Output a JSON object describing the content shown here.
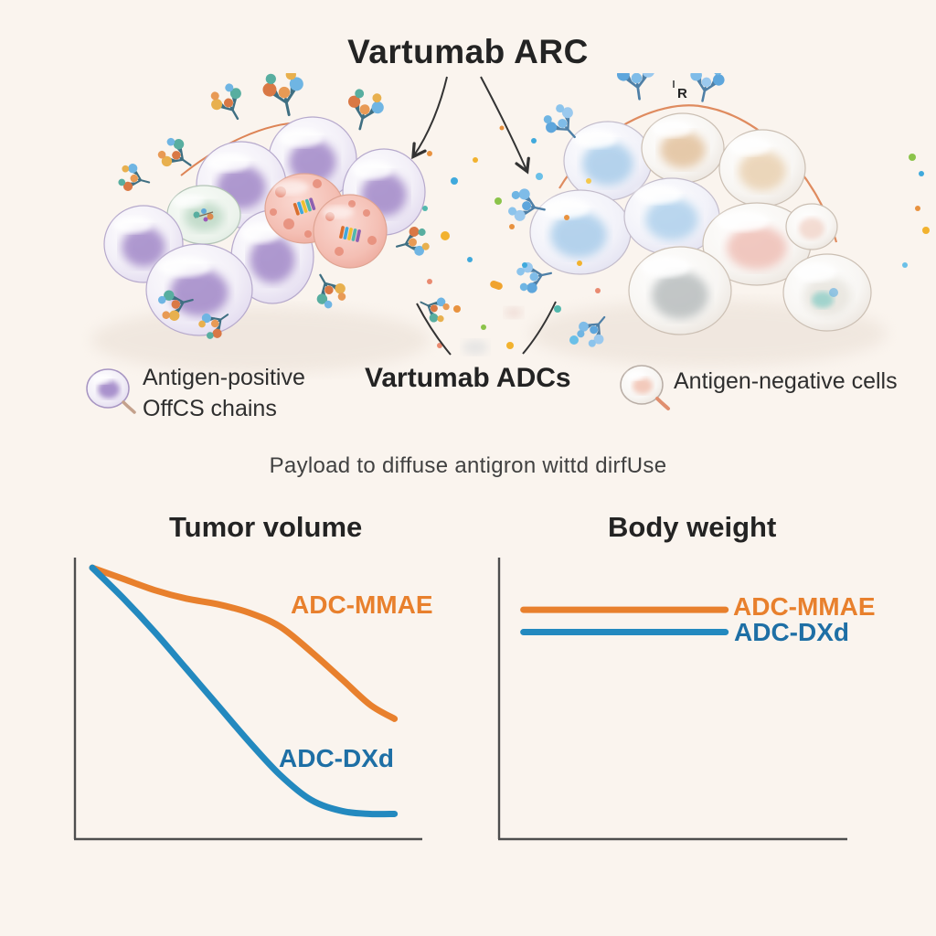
{
  "header": {
    "title": "Vartumab ARC"
  },
  "illustration": {
    "stray_glyph": "R",
    "icons": {
      "legend_positive": "antigen-positive-cell-icon",
      "legend_negative": "antigen-negative-cell-icon",
      "antibody": "adc-antibody-icon",
      "payload_dots": "payload-dots"
    }
  },
  "legend": {
    "positive": {
      "line1": "Antigen-positive",
      "line2": "OffCS chains"
    },
    "center_label": "Vartumab ADCs",
    "negative": {
      "label": "Antigen-negative cells"
    }
  },
  "caption": "Payload to diffuse antigron wittd dirfUse",
  "colors": {
    "background": "#FAF4EE",
    "accent_orange": "#E8802D",
    "accent_blue": "#2389BF",
    "label_blue": "#1E6FA5",
    "arc_orange": "#D97845",
    "text": "#262626"
  },
  "chart_data": [
    {
      "type": "line",
      "title": "Tumor volume",
      "xlabel": "",
      "ylabel": "",
      "xlim": [
        0,
        100
      ],
      "ylim": [
        0,
        100
      ],
      "grid": false,
      "axis_tick_labels": false,
      "legend_position": "inline-labels",
      "series": [
        {
          "name": "ADC-MMAE",
          "color": "#E8802D",
          "label_color": "#E8802D",
          "x": [
            5,
            14,
            23,
            32,
            41,
            50,
            59,
            68,
            77,
            85,
            92
          ],
          "values": [
            97,
            93,
            89,
            86,
            84,
            81,
            76,
            67,
            57,
            48,
            43
          ]
        },
        {
          "name": "ADC-DXd",
          "color": "#2389BF",
          "label_color": "#1E6FA5",
          "x": [
            5,
            14,
            23,
            32,
            41,
            50,
            59,
            68,
            77,
            85,
            92
          ],
          "values": [
            97,
            86,
            74,
            61,
            48,
            35,
            23,
            14,
            10,
            9,
            9
          ]
        }
      ]
    },
    {
      "type": "line",
      "title": "Body weight",
      "xlabel": "",
      "ylabel": "",
      "xlim": [
        0,
        100
      ],
      "ylim": [
        0,
        100
      ],
      "grid": false,
      "axis_tick_labels": false,
      "legend_position": "inline-labels",
      "series": [
        {
          "name": "ADC-MMAE",
          "color": "#E8802D",
          "label_color": "#E8802D",
          "x": [
            7,
            65
          ],
          "values": [
            82,
            82
          ]
        },
        {
          "name": "ADC-DXd",
          "color": "#2389BF",
          "label_color": "#1E6FA5",
          "x": [
            7,
            65
          ],
          "values": [
            74,
            74
          ]
        }
      ]
    }
  ]
}
